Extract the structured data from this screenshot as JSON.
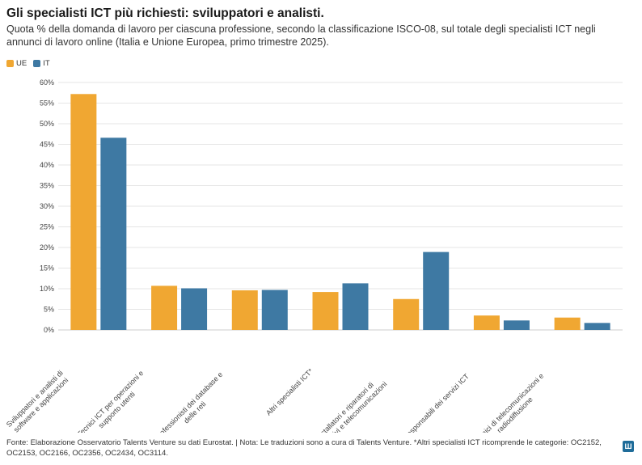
{
  "title": "Gli specialisti ICT più richiesti: sviluppatori e analisti.",
  "subtitle": "Quota % della domanda di lavoro per ciascuna professione, secondo la classificazione ISCO-08, sul totale degli specialisti ICT negli annunci di lavoro online (Italia e Unione Europea, primo trimestre 2025).",
  "footer": "Fonte: Elaborazione Osservatorio Talents Venture su dati Eurostat. | Nota: Le traduzioni sono a cura di Talents Venture. *Altri specialisti ICT ricomprende le categorie: OC2152, OC2153, OC2166, OC2356, OC2434, OC3114.",
  "colors": {
    "ue": "#f0a732",
    "it": "#3e79a3",
    "grid": "#e6e6e6",
    "axis_text": "#444444"
  },
  "chart_data": {
    "type": "bar",
    "title": "Gli specialisti ICT più richiesti: sviluppatori e analisti.",
    "xlabel": "",
    "ylabel": "",
    "ylim": [
      0,
      60
    ],
    "yticks": [
      "0%",
      "5%",
      "10%",
      "15%",
      "20%",
      "25%",
      "30%",
      "35%",
      "40%",
      "45%",
      "50%",
      "55%",
      "60%"
    ],
    "ytick_values": [
      0,
      5,
      10,
      15,
      20,
      25,
      30,
      35,
      40,
      45,
      50,
      55,
      60
    ],
    "legend_position": "top-left",
    "categories": [
      [
        "Sviluppatori e analisti di",
        "software e applicazioni"
      ],
      [
        "Tecnici ICT per operazioni e",
        "supporto utenti"
      ],
      [
        "Professionisti dei database e",
        "delle reti"
      ],
      [
        "Altri specialisti ICT*"
      ],
      [
        "Installatori e riparatori di",
        "dispositivi e telecomunicazioni"
      ],
      [
        "Responsabili dei servizi ICT"
      ],
      [
        "Tecnici di telecomunicazioni e",
        "radiodiffusione"
      ]
    ],
    "series": [
      {
        "name": "UE",
        "color": "#f0a732",
        "values": [
          57.2,
          10.7,
          9.6,
          9.2,
          7.5,
          3.5,
          3.0
        ]
      },
      {
        "name": "IT",
        "color": "#3e79a3",
        "values": [
          46.6,
          10.1,
          9.7,
          11.3,
          18.9,
          2.3,
          1.7
        ]
      }
    ]
  }
}
